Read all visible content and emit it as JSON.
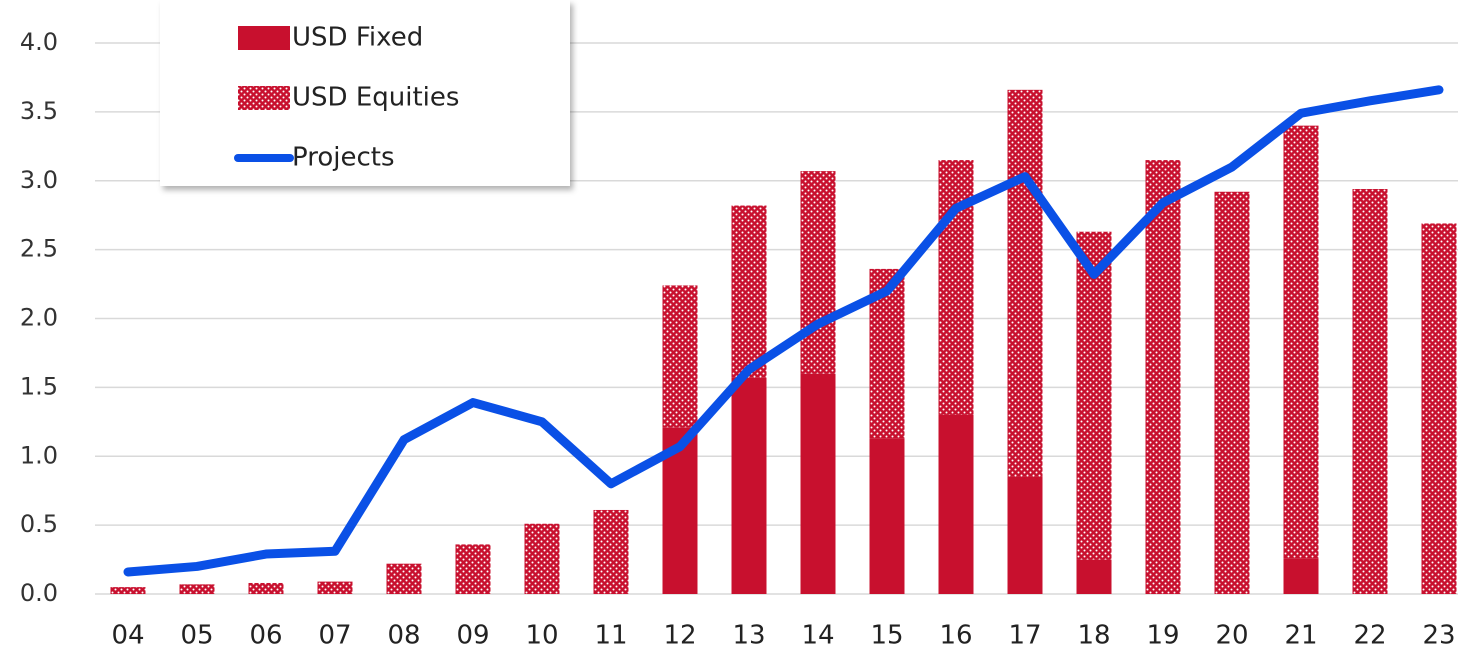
{
  "chart_data": {
    "type": "bar",
    "categories": [
      "04",
      "05",
      "06",
      "07",
      "08",
      "09",
      "10",
      "11",
      "12",
      "13",
      "14",
      "15",
      "16",
      "17",
      "18",
      "19",
      "20",
      "21",
      "22",
      "23"
    ],
    "stacked": true,
    "series": [
      {
        "name": "USD Fixed",
        "color": "#c8102e",
        "pattern": "solid",
        "values": [
          0,
          0,
          0,
          0,
          0,
          0,
          0,
          0,
          1.21,
          1.57,
          1.6,
          1.13,
          1.3,
          0.85,
          0.25,
          0,
          0,
          0.26,
          0,
          0
        ]
      },
      {
        "name": "USD Equities",
        "color": "#c8102e",
        "pattern": "dots",
        "values": [
          0.05,
          0.07,
          0.08,
          0.09,
          0.22,
          0.36,
          0.51,
          0.61,
          1.03,
          1.25,
          1.47,
          1.23,
          1.85,
          2.81,
          2.38,
          3.15,
          2.92,
          3.14,
          2.94,
          2.69
        ]
      },
      {
        "name": "Projects",
        "type": "line",
        "color": "#0a50e6",
        "values": [
          0.16,
          0.2,
          0.29,
          0.31,
          1.12,
          1.39,
          1.25,
          0.8,
          1.07,
          1.63,
          1.96,
          2.2,
          2.8,
          3.03,
          2.32,
          2.84,
          3.1,
          3.49,
          3.58,
          3.66
        ]
      }
    ],
    "ylim": [
      0,
      4
    ],
    "yticks": [
      {
        "value": 0,
        "label": "0.0"
      },
      0.5,
      {
        "value": 1,
        "label": "1.0"
      },
      1.5,
      {
        "value": 2,
        "label": "2.0"
      },
      2.5,
      {
        "value": 3,
        "label": "3.0"
      },
      3.5,
      {
        "value": 4,
        "label": "4.0"
      }
    ],
    "grid": true,
    "legend": "upper left"
  }
}
